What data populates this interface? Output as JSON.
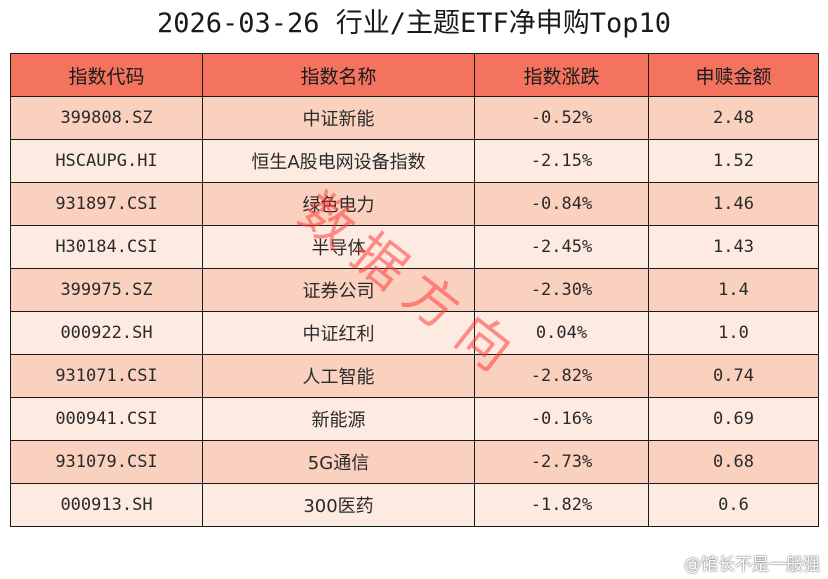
{
  "title": "2026-03-26 行业/主题ETF净申购Top10",
  "accent_color": "#f3735f",
  "columns": [
    "指数代码",
    "指数名称",
    "指数涨跌",
    "申赎金额"
  ],
  "rows": [
    {
      "code": "399808.SZ",
      "name": "中证新能",
      "change": "-0.52%",
      "amount": "2.48"
    },
    {
      "code": "HSCAUPG.HI",
      "name": "恒生A股电网设备指数",
      "change": "-2.15%",
      "amount": "1.52"
    },
    {
      "code": "931897.CSI",
      "name": "绿色电力",
      "change": "-0.84%",
      "amount": "1.46"
    },
    {
      "code": "H30184.CSI",
      "name": "半导体",
      "change": "-2.45%",
      "amount": "1.43"
    },
    {
      "code": "399975.SZ",
      "name": "证券公司",
      "change": "-2.30%",
      "amount": "1.4"
    },
    {
      "code": "000922.SH",
      "name": "中证红利",
      "change": "0.04%",
      "amount": "1.0"
    },
    {
      "code": "931071.CSI",
      "name": "人工智能",
      "change": "-2.82%",
      "amount": "0.74"
    },
    {
      "code": "000941.CSI",
      "name": "新能源",
      "change": "-0.16%",
      "amount": "0.69"
    },
    {
      "code": "931079.CSI",
      "name": "5G通信",
      "change": "-2.73%",
      "amount": "0.68"
    },
    {
      "code": "000913.SH",
      "name": "300医药",
      "change": "-1.82%",
      "amount": "0.6"
    }
  ],
  "watermark": "数据方向",
  "weibo_handle": "@馆长不是一般强",
  "chart_data": {
    "type": "table",
    "title": "2026-03-26 行业/主题ETF净申购Top10",
    "columns": [
      "指数代码",
      "指数名称",
      "指数涨跌",
      "申赎金额"
    ],
    "categories": [
      "中证新能",
      "恒生A股电网设备指数",
      "绿色电力",
      "半导体",
      "证券公司",
      "中证红利",
      "人工智能",
      "新能源",
      "5G通信",
      "300医药"
    ],
    "series": [
      {
        "name": "指数涨跌(%)",
        "values": [
          -0.52,
          -2.15,
          -0.84,
          -2.45,
          -2.3,
          0.04,
          -2.82,
          -0.16,
          -2.73,
          -1.82
        ]
      },
      {
        "name": "申赎金额",
        "values": [
          2.48,
          1.52,
          1.46,
          1.43,
          1.4,
          1.0,
          0.74,
          0.69,
          0.68,
          0.6
        ]
      }
    ]
  }
}
